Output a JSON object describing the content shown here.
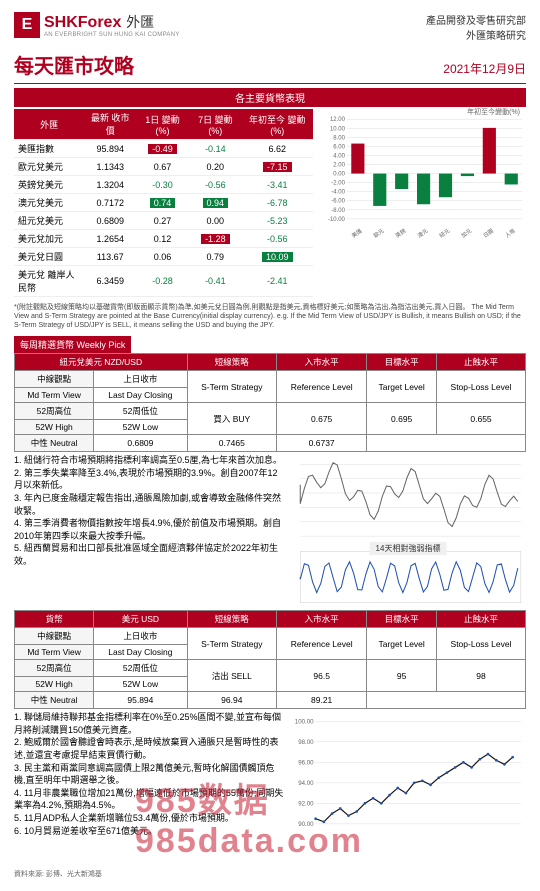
{
  "header": {
    "logo_e": "E",
    "logo_shk": "SHK",
    "logo_forex": "Forex",
    "logo_cn": "外匯",
    "logo_sub": "AN EVERBRIGHT SUN HUNG KAI COMPANY",
    "dept1": "產品開發及零售研究部",
    "dept2": "外匯策略研究"
  },
  "title": "每天匯市攻略",
  "date": "2021年12月9日",
  "band1": "各主要貨幣表現",
  "table1": {
    "headers": [
      "外匯",
      "最新\n收市價",
      "1日\n變動(%)",
      "7日\n變動(%)",
      "年初至今\n變動(%)"
    ],
    "rows": [
      {
        "n": "美匯指數",
        "v": [
          "95.894",
          "-0.49",
          "-0.14",
          "6.62"
        ],
        "c": [
          null,
          "up",
          null,
          null
        ]
      },
      {
        "n": "歐元兌美元",
        "v": [
          "1.1343",
          "0.67",
          "0.20",
          "-7.15"
        ],
        "c": [
          null,
          null,
          null,
          "up"
        ]
      },
      {
        "n": "英鎊兌美元",
        "v": [
          "1.3204",
          "-0.30",
          "-0.56",
          "-3.41"
        ],
        "c": [
          null,
          null,
          null,
          null
        ]
      },
      {
        "n": "澳元兌美元",
        "v": [
          "0.7172",
          "0.74",
          "0.94",
          "-6.78"
        ],
        "c": [
          null,
          "dn",
          "dn",
          null
        ]
      },
      {
        "n": "紐元兌美元",
        "v": [
          "0.6809",
          "0.27",
          "0.00",
          "-5.23"
        ],
        "c": [
          null,
          null,
          null,
          null
        ]
      },
      {
        "n": "美元兌加元",
        "v": [
          "1.2654",
          "0.12",
          "-1.28",
          "-0.56"
        ],
        "c": [
          null,
          null,
          "up",
          null
        ]
      },
      {
        "n": "美元兌日圓",
        "v": [
          "113.67",
          "0.06",
          "0.79",
          "10.09"
        ],
        "c": [
          null,
          null,
          null,
          "dn"
        ]
      },
      {
        "n": "美元兌\n離岸人民幣",
        "v": [
          "6.3459",
          "-0.28",
          "-0.41",
          "-2.41"
        ],
        "c": [
          null,
          null,
          null,
          null
        ]
      }
    ]
  },
  "chart1": {
    "title": "年初至今變動(%)",
    "ylim": [
      -10,
      12
    ],
    "yticks": [
      -10,
      -8,
      -6,
      -4,
      -2,
      0,
      2,
      4,
      6,
      8,
      10,
      12
    ],
    "labels": [
      "美匯",
      "歐元",
      "英鎊",
      "澳元",
      "紐元",
      "加元",
      "日圓",
      "人幣"
    ],
    "values": [
      6.62,
      -7.15,
      -3.41,
      -6.78,
      -5.23,
      -0.56,
      10.09,
      -2.41
    ],
    "pos_color": "#b00020",
    "neg_color": "#0a8040",
    "grid_color": "#ddd"
  },
  "note": "*(附註觀點及短線策略均以基礎貨幣(即版面顯示貨幣)為準,如美元兌日圓為例,則觀點是指美元,資格標好美元;如策略為沽出,為指沽出美元,買入日圓。\nThe Mid Term View and S-Term Strategy are pointed at the Base Currency(initial display currency). e.g. If the Mid Term View of USD/JPY is Bullish, it means Bullish on USD; if the S-Term Strategy of USD/JPY is SELL, it means selling the USD and buying the JPY.",
  "weekly": {
    "label": "每周精選貨幣 Weekly Pick",
    "pair": "紐元兌美元 NZD/USD",
    "h": [
      "短線策略",
      "入市水平",
      "目標水平",
      "止蝕水平"
    ],
    "h2": [
      "S-Term Strategy",
      "Reference Level",
      "Target Level",
      "Stop-Loss Level"
    ],
    "cols": [
      "中線觀點",
      "上日收市",
      "52周高位",
      "52周低位"
    ],
    "cols2": [
      "Md Term View",
      "Last Day Closing",
      "52W High",
      "52W Low"
    ],
    "r": [
      "中性 Neutral",
      "0.6809",
      "0.7465",
      "0.6737"
    ],
    "strat": [
      "買入 BUY",
      "0.675",
      "0.695",
      "0.655"
    ],
    "bullets": [
      "1. 紐儲行符合市場預期將指標利率調高至0.5厘,為七年來首次加息。",
      "2. 第三季失業率降至3.4%,表現於市場預期的3.9%。創自2007年12月以來新低。",
      "3. 年內已度金融穩定報告指出,通脹風險加劇,或會導致金融條件突然收緊。",
      "4. 第三季消費者物價指數按年增長4.9%,優於前值及市場預期。創自2010年第四季以來最大按季升幅。",
      "5. 紐西蘭貿易和出口部長批准區域全面經濟夥伴協定於2022年初生效。"
    ],
    "chart": {
      "title": "14天相對強弱指標",
      "color": "#555",
      "grid": "#ccc"
    }
  },
  "usd": {
    "pair": "美元 USD",
    "cols": [
      "貨幣",
      "中線觀點",
      "Md Term View",
      "中性 Neutral"
    ],
    "h": [
      "短線策略",
      "入市水平",
      "目標水平",
      "止蝕水平"
    ],
    "h2": [
      "S-Term Strategy",
      "Reference Level",
      "Target Level",
      "Stop-Loss Level"
    ],
    "cols_h": [
      "中線觀點",
      "上日收市",
      "52周高位",
      "52周低位"
    ],
    "cols_h2": [
      "Md Term View",
      "Last Day Closing",
      "52W High",
      "52W Low"
    ],
    "r": [
      "中性 Neutral",
      "95.894",
      "96.94",
      "89.21"
    ],
    "strat": [
      "沽出 SELL",
      "96.5",
      "95",
      "98"
    ],
    "bullets": [
      "1. 聯儲局維持聯邦基金指標利率在0%至0.25%區間不變,並宣布每個月將削減購買150億美元資產。",
      "2. 鮑威爾於國會聽證會時表示,是時候放棄買入通脹只是暫時性的表述,並還宜考慮提早結束買債行動。",
      "3. 民主黨和兩黨同意調高國債上限2萬億美元,暫時化解國債觸頂危機,直至明年中期選舉之後。",
      "4. 11月非農業職位增加21萬份,增幅遠低於市場預期的55萬份;同期失業率為4.2%,預期為4.5%。",
      "5. 11月ADP私人企業新增職位53.4萬份,優於市場預期。",
      "6. 10月貿易逆差收窄至671億美元。"
    ],
    "chart": {
      "pos_color": "#2050b0",
      "ylim": [
        90,
        100
      ],
      "yticks": [
        90,
        92,
        94,
        96,
        98,
        100
      ]
    }
  },
  "footer": "資料來源: 彭博、光大新鴻基",
  "watermark": "985数据 985data.com"
}
